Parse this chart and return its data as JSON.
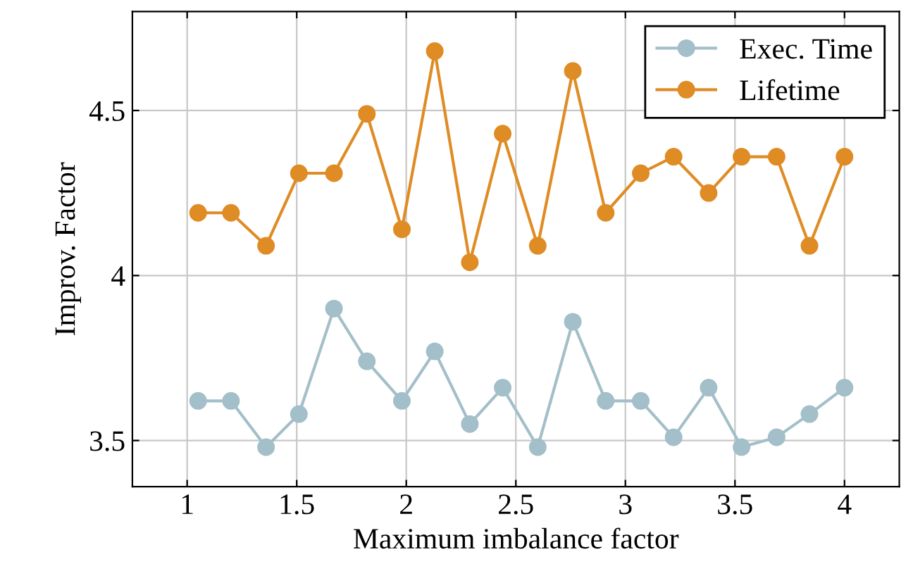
{
  "chart_data": {
    "type": "line",
    "xlabel": "Maximum imbalance factor",
    "ylabel": "Improv. Factor",
    "x": [
      1.05,
      1.2,
      1.36,
      1.51,
      1.67,
      1.82,
      1.98,
      2.13,
      2.29,
      2.44,
      2.6,
      2.76,
      2.91,
      3.07,
      3.22,
      3.38,
      3.53,
      3.69,
      3.84,
      4.0
    ],
    "series": [
      {
        "name": "Exec. Time",
        "color": "#a3bfc9",
        "values": [
          3.62,
          3.62,
          3.48,
          3.58,
          3.9,
          3.74,
          3.62,
          3.77,
          3.55,
          3.66,
          3.48,
          3.86,
          3.62,
          3.62,
          3.51,
          3.66,
          3.48,
          3.51,
          3.58,
          3.66
        ]
      },
      {
        "name": "Lifetime",
        "color": "#df8c25",
        "values": [
          4.19,
          4.19,
          4.09,
          4.31,
          4.31,
          4.49,
          4.14,
          4.68,
          4.04,
          4.43,
          4.09,
          4.62,
          4.19,
          4.31,
          4.36,
          4.25,
          4.36,
          4.36,
          4.09,
          4.36
        ]
      }
    ],
    "xlim": [
      0.75,
      4.25
    ],
    "ylim": [
      3.36,
      4.8
    ],
    "xticks": [
      1,
      1.5,
      2,
      2.5,
      3,
      3.5,
      4
    ],
    "yticks": [
      3.5,
      4,
      4.5
    ],
    "grid": true,
    "legend": "top right",
    "marker": "circle",
    "line_style": "solid"
  }
}
